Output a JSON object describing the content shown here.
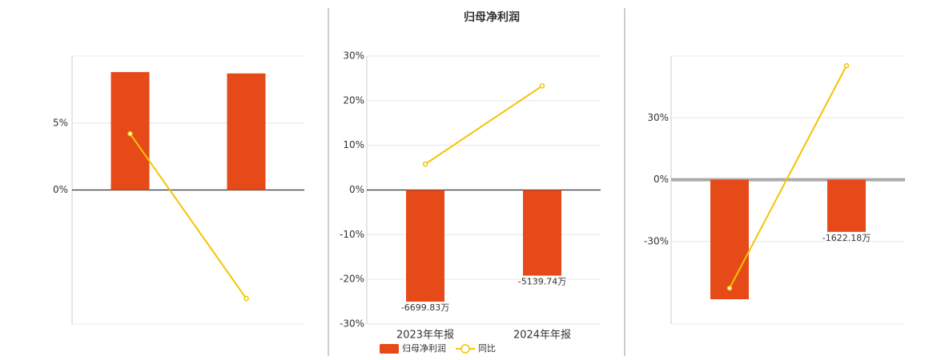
{
  "chart_data": [
    {
      "type": "combo",
      "categories": [
        null,
        null
      ],
      "series": [
        {
          "color": "#e64a19",
          "values": [
            8800,
            8700
          ],
          "chart": "bar",
          "axis": "y2"
        },
        {
          "color": "#f5c400",
          "values": [
            4.2,
            -8.1
          ],
          "chart": "line"
        }
      ],
      "ylim": [
        -10,
        10
      ],
      "yticks": [
        {
          "value": 5,
          "label": "5%"
        },
        {
          "value": 0,
          "label": "0%"
        }
      ],
      "y2lim": [
        -10000,
        10000
      ],
      "grid": true
    },
    {
      "type": "combo",
      "title": "归母净利润",
      "categories": [
        "2023年年报",
        "2024年年报"
      ],
      "series": [
        {
          "name": "归母净利润",
          "color": "#e64a19",
          "values": [
            -6699.83,
            -5139.74
          ],
          "value_labels": [
            "-6699.83万",
            "-5139.74万"
          ],
          "chart": "bar",
          "axis": "y2"
        },
        {
          "name": "同比",
          "color": "#f5c400",
          "values": [
            5.8,
            23.3
          ],
          "chart": "line"
        }
      ],
      "ylim": [
        -30,
        30
      ],
      "yticks": [
        {
          "value": 30,
          "label": "30%"
        },
        {
          "value": 20,
          "label": "20%"
        },
        {
          "value": 10,
          "label": "10%"
        },
        {
          "value": 0,
          "label": "0%"
        },
        {
          "value": -10,
          "label": "-10%"
        },
        {
          "value": -20,
          "label": "-20%"
        },
        {
          "value": -30,
          "label": "-30%"
        }
      ],
      "y2lim": [
        -8040,
        8040
      ],
      "grid": true,
      "legend": "bottom"
    },
    {
      "type": "combo",
      "categories": [
        null,
        null
      ],
      "series": [
        {
          "color": "#e64a19",
          "values": [
            -3720,
            -1622.18
          ],
          "value_labels": [
            null,
            "-1622.18万"
          ],
          "chart": "bar",
          "axis": "y2"
        },
        {
          "color": "#f5c400",
          "values": [
            -52.6,
            55.3
          ],
          "chart": "line"
        }
      ],
      "ylim": [
        -70,
        60
      ],
      "yticks": [
        {
          "value": 30,
          "label": "30%"
        },
        {
          "value": 0,
          "label": "0%"
        },
        {
          "value": -30,
          "label": "-30%"
        }
      ],
      "y2lim": [
        -4490,
        3850
      ],
      "grid": true
    }
  ]
}
